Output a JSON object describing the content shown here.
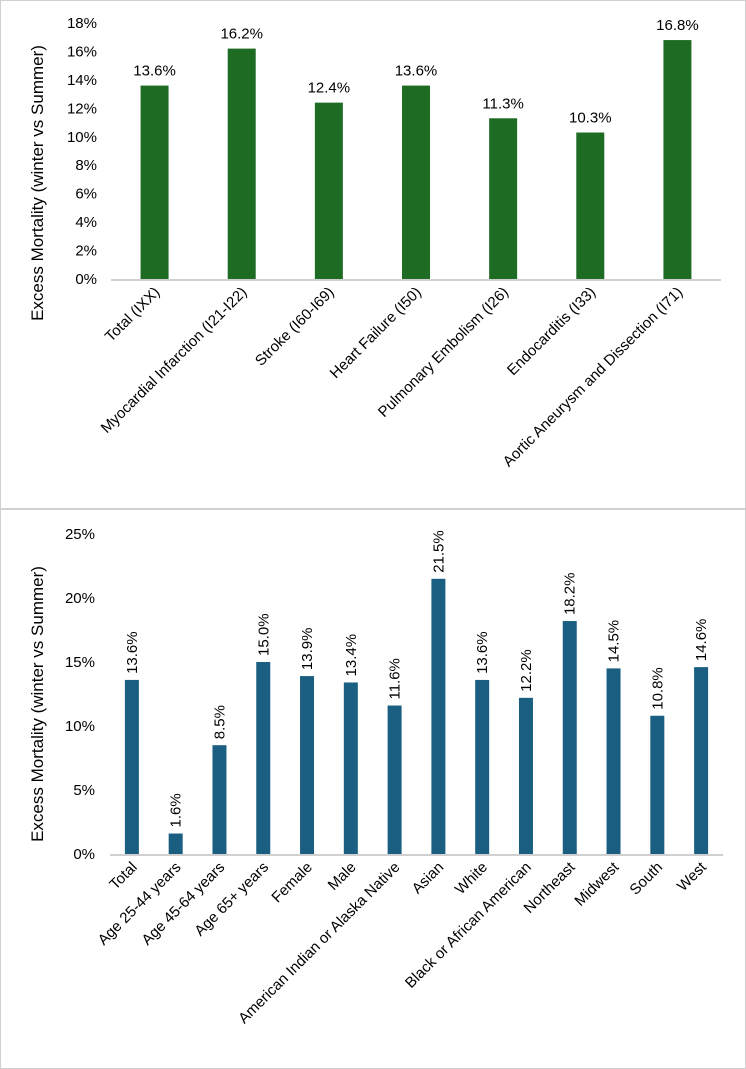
{
  "chart_data": [
    {
      "type": "bar",
      "ylabel": "Excess Mortality (winter vs Summer)",
      "categories": [
        "Total (IXX)",
        "Myocardial Infarction (I21-I22)",
        "Stroke (I60-I69)",
        "Heart Failure (I50)",
        "Pulmonary Embolism (I26)",
        "Endocarditis (I33)",
        "Aortic Aneurysm and Dissection (I71)"
      ],
      "values": [
        13.6,
        16.2,
        12.4,
        13.6,
        11.3,
        10.3,
        16.8
      ],
      "data_labels": [
        "13.6%",
        "16.2%",
        "12.4%",
        "13.6%",
        "11.3%",
        "10.3%",
        "16.8%"
      ],
      "yticks": [
        "0%",
        "2%",
        "4%",
        "6%",
        "8%",
        "10%",
        "12%",
        "14%",
        "16%",
        "18%"
      ],
      "ylim": [
        0,
        18
      ],
      "grid": false,
      "color": "#1e6b24"
    },
    {
      "type": "bar",
      "ylabel": "Excess Mortality (winter vs Summer)",
      "categories": [
        "Total",
        "Age 25-44 years",
        "Age 45-64 years",
        "Age 65+ years",
        "Female",
        "Male",
        "American Indian or Alaska Native",
        "Asian",
        "White",
        "Black or African American",
        "Northeast",
        "Midwest",
        "South",
        "West"
      ],
      "values": [
        13.6,
        1.6,
        8.5,
        15.0,
        13.9,
        13.4,
        11.6,
        21.5,
        13.6,
        12.2,
        18.2,
        14.5,
        10.8,
        14.6
      ],
      "data_labels": [
        "13.6%",
        "1.6%",
        "8.5%",
        "15.0%",
        "13.9%",
        "13.4%",
        "11.6%",
        "21.5%",
        "13.6%",
        "12.2%",
        "18.2%",
        "14.5%",
        "10.8%",
        "14.6%"
      ],
      "yticks": [
        "0%",
        "5%",
        "10%",
        "15%",
        "20%",
        "25%"
      ],
      "ylim": [
        0,
        25
      ],
      "grid": false,
      "color": "#1a5f82"
    }
  ]
}
